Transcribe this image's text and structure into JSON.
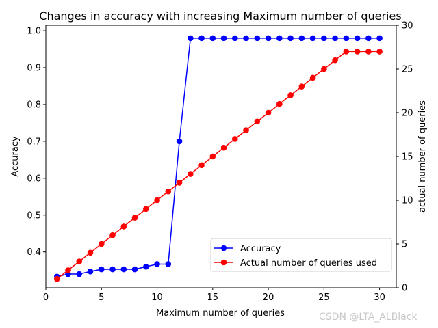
{
  "chart_data": {
    "type": "line",
    "title": "Changes in accuracy with increasing Maximum number of queries",
    "xlabel": "Maximum number of queries",
    "ylabel": "Accuracy",
    "y2label": "actual number of queries",
    "xlim": [
      0,
      31.5
    ],
    "ylim": [
      0.303,
      1.015
    ],
    "y2lim": [
      0,
      30
    ],
    "xticks": [
      0,
      5,
      10,
      15,
      20,
      25,
      30
    ],
    "yticks": [
      0.4,
      0.5,
      0.6,
      0.7,
      0.8,
      0.9,
      1.0
    ],
    "y2ticks": [
      0,
      5,
      10,
      15,
      20,
      25,
      30
    ],
    "legend_position": "lower-right",
    "grid": false,
    "x": [
      1,
      2,
      3,
      4,
      5,
      6,
      7,
      8,
      9,
      10,
      11,
      12,
      13,
      14,
      15,
      16,
      17,
      18,
      19,
      20,
      21,
      22,
      23,
      24,
      25,
      26,
      27,
      28,
      29,
      30
    ],
    "series": [
      {
        "name": "Accuracy",
        "axis": "left",
        "color": "#0000ff",
        "values": [
          0.333,
          0.34,
          0.34,
          0.347,
          0.353,
          0.353,
          0.353,
          0.353,
          0.36,
          0.367,
          0.367,
          0.7,
          0.98,
          0.98,
          0.98,
          0.98,
          0.98,
          0.98,
          0.98,
          0.98,
          0.98,
          0.98,
          0.98,
          0.98,
          0.98,
          0.98,
          0.98,
          0.98,
          0.98,
          0.98
        ]
      },
      {
        "name": "Actual number of queries used",
        "axis": "right",
        "color": "#ff0000",
        "values": [
          1,
          2,
          3,
          4,
          5,
          6,
          7,
          8,
          9,
          10,
          11,
          12,
          13,
          14,
          15,
          16,
          17,
          18,
          19,
          20,
          21,
          22,
          23,
          24,
          25,
          26,
          27,
          27,
          27,
          27
        ]
      }
    ]
  },
  "watermark": "CSDN @LTA_ALBlack"
}
